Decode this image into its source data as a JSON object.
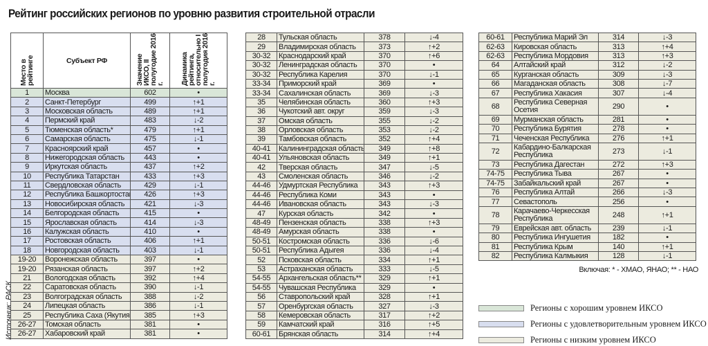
{
  "title": "Рейтинг российских регионов по уровню развития строительной отрасли",
  "source": "Источник: РАСК",
  "headers": {
    "place": "Место в рейтинге",
    "subject": "Субъект РФ",
    "value": "Значение ИКСО, II полугодие 2016 г.",
    "dynamics": "Динамика рейтинга, относительно I полугодия 2016 г."
  },
  "colors": {
    "good": "#d9e6d8",
    "satisfactory": "#d8deef",
    "low": "#ecebdf"
  },
  "tables": [
    [
      [
        "1",
        "Москва",
        "602",
        "•",
        "good"
      ],
      [
        "2",
        "Санкт-Петербург",
        "499",
        "↑+1",
        "satisfactory"
      ],
      [
        "3",
        "Московская область",
        "489",
        "↑+1",
        "satisfactory"
      ],
      [
        "4",
        "Пермский край",
        "483",
        "↓-2",
        "satisfactory"
      ],
      [
        "5",
        "Тюменская область*",
        "479",
        "↑+1",
        "satisfactory"
      ],
      [
        "6",
        "Самарская область",
        "475",
        "↓-1",
        "satisfactory"
      ],
      [
        "7",
        "Красноярский край",
        "457",
        "•",
        "satisfactory"
      ],
      [
        "8",
        "Нижегородская область",
        "443",
        "•",
        "satisfactory"
      ],
      [
        "9",
        "Иркутская область",
        "437",
        "↑+2",
        "satisfactory"
      ],
      [
        "10",
        "Республика Татарстан",
        "433",
        "↑+3",
        "satisfactory"
      ],
      [
        "11",
        "Свердловская область",
        "429",
        "↓-1",
        "satisfactory"
      ],
      [
        "12",
        "Республика Башкортостан",
        "426",
        "↑+3",
        "satisfactory"
      ],
      [
        "13",
        "Новосибирская область",
        "421",
        "↓-3",
        "satisfactory"
      ],
      [
        "14",
        "Белгородская область",
        "415",
        "•",
        "satisfactory"
      ],
      [
        "15",
        "Ярославская область",
        "414",
        "↓-3",
        "satisfactory"
      ],
      [
        "16",
        "Калужская область",
        "410",
        "•",
        "satisfactory"
      ],
      [
        "17",
        "Ростовская область",
        "406",
        "↑+1",
        "satisfactory"
      ],
      [
        "18",
        "Новгородская область",
        "403",
        "↓-1",
        "satisfactory"
      ],
      [
        "19-20",
        "Воронежская область",
        "397",
        "•",
        "low"
      ],
      [
        "19-20",
        "Рязанская область",
        "397",
        "↑+2",
        "low"
      ],
      [
        "21",
        "Вологодская область",
        "392",
        "↑+4",
        "low"
      ],
      [
        "22",
        "Саратовская область",
        "390",
        "↓-1",
        "low"
      ],
      [
        "23",
        "Волгоградская область",
        "388",
        "↓-2",
        "low"
      ],
      [
        "24",
        "Липецкая область",
        "386",
        "↓-1",
        "low"
      ],
      [
        "25",
        "Республика Саха (Якутия)",
        "385",
        "↑+3",
        "low"
      ],
      [
        "26-27",
        "Томская область",
        "381",
        "•",
        "low"
      ],
      [
        "26-27",
        "Хабаровский край",
        "381",
        "•",
        "low"
      ]
    ],
    [
      [
        "28",
        "Тульская область",
        "378",
        "↓-4",
        "low"
      ],
      [
        "29",
        "Владимирская область",
        "373",
        "↑+2",
        "low"
      ],
      [
        "30-32",
        "Краснодарский край",
        "370",
        "↑+6",
        "low"
      ],
      [
        "30-32",
        "Ленинградская область",
        "370",
        "•",
        "low"
      ],
      [
        "30-32",
        "Республика Карелия",
        "370",
        "↓-1",
        "low"
      ],
      [
        "33-34",
        "Приморский край",
        "369",
        "•",
        "low"
      ],
      [
        "33-34",
        "Сахалинская область",
        "369",
        "↓-3",
        "low"
      ],
      [
        "35",
        "Челябинская область",
        "360",
        "↑+3",
        "low"
      ],
      [
        "36",
        "Чукотский авт. округ",
        "359",
        "↓-3",
        "low"
      ],
      [
        "37",
        "Омская область",
        "355",
        "↓-2",
        "low"
      ],
      [
        "38",
        "Орловская область",
        "353",
        "↓-2",
        "low"
      ],
      [
        "39",
        "Тамбовская область",
        "352",
        "↑+4",
        "low"
      ],
      [
        "40-41",
        "Калининградская область",
        "349",
        "↑+8",
        "low"
      ],
      [
        "40-41",
        "Ульяновская область",
        "349",
        "↑+1",
        "low"
      ],
      [
        "42",
        "Тверская область",
        "347",
        "↓-5",
        "low"
      ],
      [
        "43",
        "Смоленская область",
        "346",
        "↓-2",
        "low"
      ],
      [
        "44-46",
        "Удмуртская Республика",
        "343",
        "↑+3",
        "low"
      ],
      [
        "44-46",
        "Республика Коми",
        "343",
        "•",
        "low"
      ],
      [
        "44-46",
        "Ивановская область",
        "343",
        "↓-3",
        "low"
      ],
      [
        "47",
        "Курская область",
        "342",
        "•",
        "low"
      ],
      [
        "48-49",
        "Пензенская область",
        "338",
        "↑+3",
        "low"
      ],
      [
        "48-49",
        "Амурская область",
        "338",
        "•",
        "low"
      ],
      [
        "50-51",
        "Костромская область",
        "336",
        "↓-6",
        "low"
      ],
      [
        "50-51",
        "Республика Адыгея",
        "336",
        "↓-4",
        "low"
      ],
      [
        "52",
        "Псковская область",
        "334",
        "↑+1",
        "low"
      ],
      [
        "53",
        "Астраханская область",
        "333",
        "↓-5",
        "low"
      ],
      [
        "54-55",
        "Архангельская область**",
        "329",
        "↑+1",
        "low"
      ],
      [
        "54-55",
        "Чувашская Республика",
        "329",
        "•",
        "low"
      ],
      [
        "56",
        "Ставропольский край",
        "328",
        "↑+1",
        "low"
      ],
      [
        "57",
        "Оренбургская область",
        "327",
        "↓-3",
        "low"
      ],
      [
        "58",
        "Кемеровская область",
        "317",
        "↑+2",
        "low"
      ],
      [
        "59",
        "Камчатский край",
        "316",
        "↑+5",
        "low"
      ],
      [
        "60-61",
        "Брянская область",
        "314",
        "↑+4",
        "low"
      ]
    ],
    [
      [
        "60-61",
        "Республика Марий Эл",
        "314",
        "↓-3",
        "low"
      ],
      [
        "62-63",
        "Кировская область",
        "313",
        "↑+4",
        "low"
      ],
      [
        "62-63",
        "Республика Мордовия",
        "313",
        "↑+3",
        "low"
      ],
      [
        "64",
        "Алтайский край",
        "312",
        "↓-2",
        "low"
      ],
      [
        "65",
        "Курганская область",
        "309",
        "↓-3",
        "low"
      ],
      [
        "66",
        "Магаданская область",
        "308",
        "↓-7",
        "low"
      ],
      [
        "67",
        "Республика Хакасия",
        "307",
        "↓-4",
        "low"
      ],
      [
        "68",
        "Республика Северная Осетия",
        "290",
        "•",
        "low"
      ],
      [
        "69",
        "Мурманская область",
        "281",
        "•",
        "low"
      ],
      [
        "70",
        "Республика Бурятия",
        "278",
        "•",
        "low"
      ],
      [
        "71",
        "Чеченская Республика",
        "276",
        "↑+1",
        "low"
      ],
      [
        "72",
        "Кабардино-Балкарская Республика",
        "273",
        "↓-1",
        "low"
      ],
      [
        "73",
        "Республика Дагестан",
        "272",
        "↑+3",
        "low"
      ],
      [
        "74-75",
        "Республика Тыва",
        "267",
        "•",
        "low"
      ],
      [
        "74-75",
        "Забайкальский край",
        "267",
        "•",
        "low"
      ],
      [
        "76",
        "Республика Алтай",
        "266",
        "↓-3",
        "low"
      ],
      [
        "77",
        "Севастополь",
        "256",
        "•",
        "low"
      ],
      [
        "78",
        "Карачаево-Черкесская Республика",
        "248",
        "↑+1",
        "low"
      ],
      [
        "79",
        "Еврейская авт. область",
        "239",
        "↓-1",
        "low"
      ],
      [
        "80",
        "Республика Ингушетия",
        "182",
        "•",
        "low"
      ],
      [
        "81",
        "Республика Крым",
        "140",
        "↑+1",
        "low"
      ],
      [
        "82",
        "Республика Калмыкия",
        "128",
        "↓-1",
        "low"
      ]
    ]
  ],
  "footnote": "Включая: * - ХМАО, ЯНАО; ** - НАО",
  "legend": [
    {
      "label": "Регионы с хорошим уровнем ИКСО",
      "level": "good"
    },
    {
      "label": "Регионы с удовлетворительным уровнем ИКСО",
      "level": "satisfactory"
    },
    {
      "label": "Регионы с низким уровнем ИКСО",
      "level": "low"
    }
  ]
}
